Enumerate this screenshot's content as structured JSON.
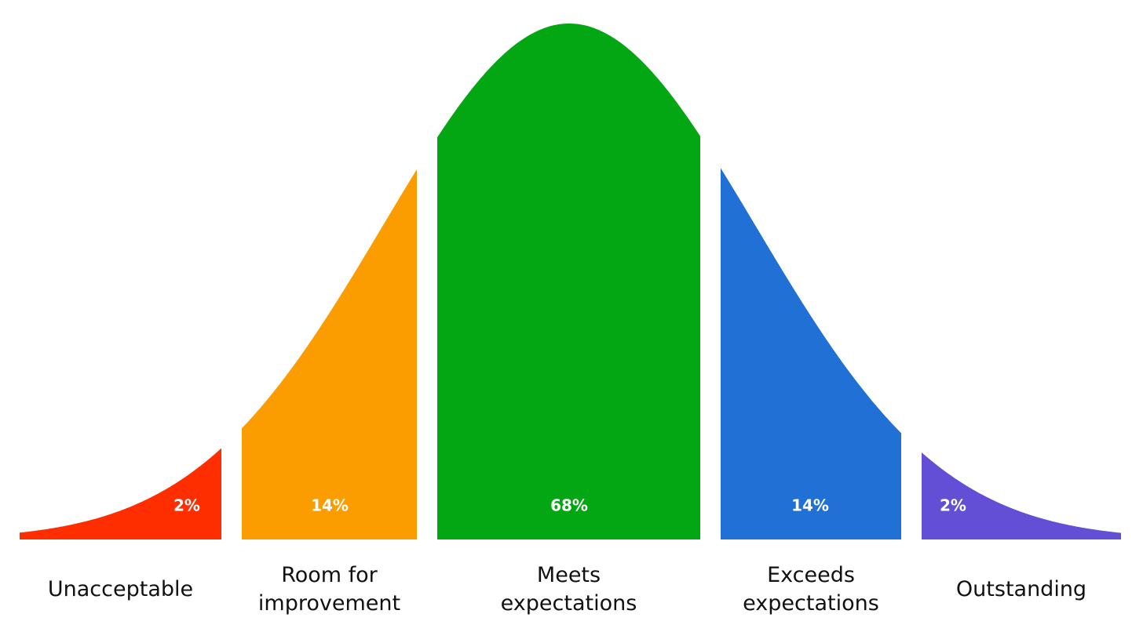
{
  "chart_data": {
    "type": "bell",
    "categories": [
      "Unacceptable",
      "Room for improvement",
      "Meets expectations",
      "Exceeds expectations",
      "Outstanding"
    ],
    "values": [
      2,
      14,
      68,
      14,
      2
    ],
    "value_labels": [
      "2%",
      "14%",
      "68%",
      "14%",
      "2%"
    ],
    "colors": [
      "#ff2e00",
      "#fb9d00",
      "#02a713",
      "#2170d6",
      "#624fd6"
    ]
  }
}
